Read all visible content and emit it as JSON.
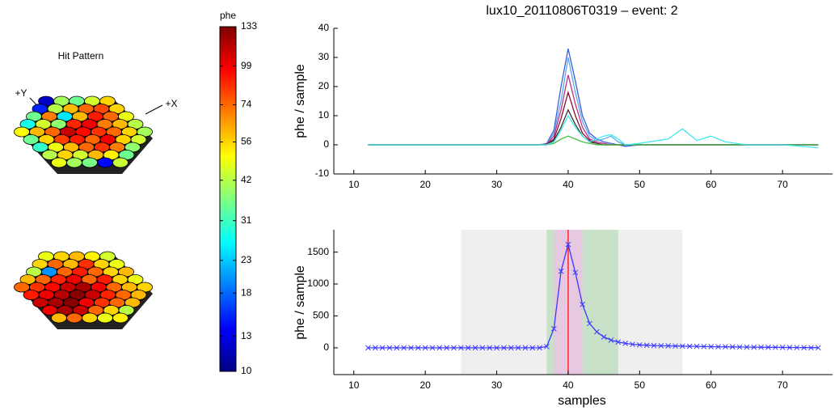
{
  "chart_data": [
    {
      "type": "hexmap",
      "title": "Hit Pattern",
      "axis_labels": [
        "+Y",
        "+X"
      ],
      "colormap": "jet",
      "arrays": [
        {
          "values": [
            12,
            40,
            35,
            45,
            56,
            15,
            42,
            60,
            74,
            80,
            56,
            35,
            70,
            25,
            60,
            90,
            74,
            48,
            28,
            45,
            38,
            88,
            100,
            70,
            60,
            42,
            50,
            60,
            74,
            110,
            95,
            85,
            74,
            56,
            40,
            35,
            56,
            82,
            90,
            74,
            100,
            56,
            45,
            30,
            48,
            60,
            74,
            85,
            70,
            38,
            42,
            56,
            45,
            60,
            52,
            35,
            48,
            40,
            36,
            14,
            44
          ]
        },
        {
          "values": [
            48,
            56,
            60,
            52,
            45,
            56,
            74,
            60,
            85,
            56,
            48,
            42,
            20,
            74,
            90,
            74,
            56,
            60,
            60,
            74,
            88,
            100,
            74,
            90,
            56,
            48,
            74,
            85,
            95,
            110,
            120,
            99,
            74,
            60,
            56,
            90,
            100,
            115,
            130,
            110,
            88,
            74,
            60,
            110,
            120,
            130,
            100,
            85,
            74,
            60,
            100,
            120,
            110,
            74,
            56,
            42,
            60,
            74,
            56,
            48,
            52
          ]
        }
      ],
      "colorbar": {
        "label": "phe",
        "clim": [
          10,
          133
        ],
        "log": true,
        "ticks": [
          10,
          13,
          18,
          23,
          31,
          42,
          56,
          74,
          99,
          133
        ]
      }
    },
    {
      "type": "line",
      "title": "lux10_20110806T0319 – event: 2",
      "ylabel": "phe / sample",
      "xlim": [
        7.2,
        77
      ],
      "xticks": [
        10,
        20,
        30,
        40,
        50,
        60,
        70
      ],
      "ylim": [
        -10,
        40
      ],
      "yticks": [
        -10,
        0,
        10,
        20,
        30,
        40
      ],
      "x": [
        12,
        30,
        36,
        37,
        38,
        39,
        40,
        41,
        42,
        43,
        44,
        45,
        46,
        47,
        48,
        50,
        54,
        56,
        58,
        60,
        62,
        65,
        70,
        75
      ],
      "series": [
        {
          "color": "#3a5fe0",
          "values": [
            0,
            0,
            0,
            0.5,
            5,
            20,
            33,
            22,
            10,
            4,
            2,
            1,
            0.5,
            0,
            -0.5,
            0,
            0,
            0,
            0,
            0,
            0,
            0,
            0,
            0
          ]
        },
        {
          "color": "#5fa8f0",
          "values": [
            0,
            0,
            0,
            0.3,
            4,
            15,
            30,
            18,
            8,
            3,
            1.5,
            2,
            3,
            1,
            0,
            0,
            0,
            0,
            0,
            0,
            0,
            0,
            0,
            0
          ]
        },
        {
          "color": "#c0308a",
          "values": [
            0,
            0,
            0,
            0.2,
            3,
            12,
            24,
            14,
            6,
            2,
            1,
            0.5,
            0,
            0,
            0,
            0,
            0,
            0,
            0,
            0,
            0,
            0,
            0,
            0
          ]
        },
        {
          "color": "#8a1030",
          "values": [
            0,
            0,
            0,
            0.2,
            2,
            9,
            18,
            10,
            4,
            1.5,
            0.5,
            0,
            0,
            0,
            0,
            0,
            0,
            0,
            0,
            0,
            0,
            0,
            0,
            0
          ]
        },
        {
          "color": "#333333",
          "values": [
            0,
            0,
            0,
            0,
            1.5,
            6,
            12,
            7,
            3,
            1,
            0.5,
            0,
            0,
            0,
            0,
            0,
            0,
            0,
            0,
            0,
            0,
            0,
            0,
            0
          ]
        },
        {
          "color": "#40c040",
          "values": [
            0,
            0,
            0,
            0,
            0.5,
            2,
            3,
            2,
            1,
            0.5,
            0,
            0,
            0,
            0,
            0,
            0,
            0,
            0,
            0,
            0,
            0,
            0,
            0,
            0
          ]
        },
        {
          "color": "#40e8f0",
          "values": [
            0,
            0,
            0,
            0,
            1,
            5,
            10,
            6,
            3,
            1,
            2,
            3,
            3.5,
            2,
            0,
            0.5,
            2,
            5.5,
            1.5,
            3,
            1,
            0,
            0,
            -1
          ]
        }
      ]
    },
    {
      "type": "line",
      "ylabel": "phe / sample",
      "xlabel": "samples",
      "marker": "x",
      "xlim": [
        7.2,
        77
      ],
      "xticks": [
        10,
        20,
        30,
        40,
        50,
        60,
        70
      ],
      "ylim": [
        -420,
        1850
      ],
      "yticks": [
        0,
        500,
        1000,
        1500
      ],
      "regions": [
        {
          "x0": 25,
          "x1": 56,
          "color": "#efefef"
        },
        {
          "x0": 37,
          "x1": 47,
          "color": "#c9e1c9"
        },
        {
          "x0": 38,
          "x1": 42,
          "color": "#e6c8e0"
        }
      ],
      "cursor_x": 40,
      "cursor_color": "#ff0000",
      "x": [
        12,
        13,
        14,
        15,
        16,
        17,
        18,
        19,
        20,
        21,
        22,
        23,
        24,
        25,
        26,
        27,
        28,
        29,
        30,
        31,
        32,
        33,
        34,
        35,
        36,
        37,
        38,
        39,
        40,
        41,
        42,
        43,
        44,
        45,
        46,
        47,
        48,
        49,
        50,
        51,
        52,
        53,
        54,
        55,
        56,
        57,
        58,
        59,
        60,
        61,
        62,
        63,
        64,
        65,
        66,
        67,
        68,
        69,
        70,
        71,
        72,
        73,
        74,
        75
      ],
      "series": [
        {
          "color": "#3a3aff",
          "values": [
            0,
            0,
            0,
            0,
            0,
            0,
            0,
            0,
            0,
            0,
            0,
            0,
            0,
            0,
            0,
            0,
            0,
            0,
            0,
            0,
            0,
            0,
            0,
            0,
            0,
            20,
            300,
            1200,
            1620,
            1180,
            680,
            380,
            250,
            170,
            120,
            90,
            70,
            55,
            45,
            40,
            35,
            32,
            30,
            28,
            26,
            24,
            22,
            20,
            18,
            16,
            15,
            14,
            12,
            11,
            10,
            9,
            8,
            7,
            6,
            5,
            4,
            3,
            2,
            1
          ]
        }
      ]
    }
  ]
}
